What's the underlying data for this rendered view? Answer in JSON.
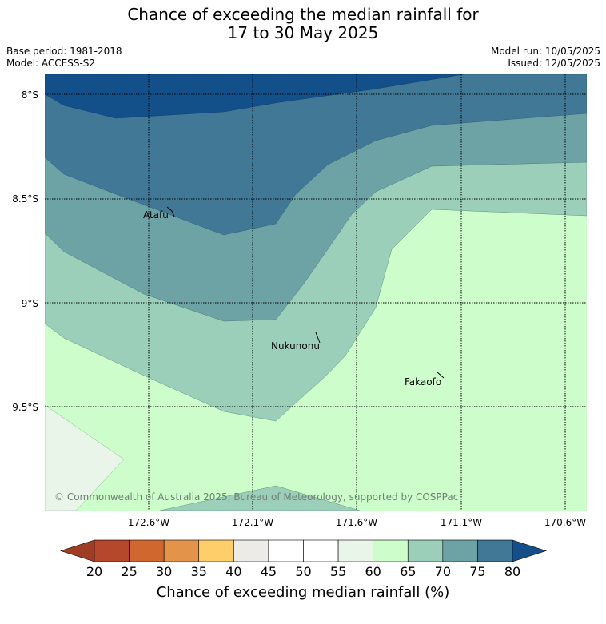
{
  "title_line1": "Chance of exceeding the median rainfall for",
  "title_line2": "17 to 30 May 2025",
  "base_period": "Base period: 1981-2018",
  "model": "Model: ACCESS-S2",
  "model_run": "Model run: 10/05/2025",
  "issued": "Issued: 12/05/2025",
  "lat_labels": [
    "8°S",
    "8.5°S",
    "9°S",
    "9.5°S"
  ],
  "lon_labels": [
    "172.6°W",
    "172.1°W",
    "171.6°W",
    "171.1°W",
    "170.6°W"
  ],
  "places": [
    "Atafu",
    "Nukunonu",
    "Fakaofo"
  ],
  "copyright": "© Commonwealth of Australia 2025, Bureau of Meteorology, supported by COSPPac",
  "colorbar": {
    "title": "Chance of exceeding median rainfall (%)",
    "ticks": [
      "20",
      "25",
      "30",
      "35",
      "40",
      "45",
      "50",
      "55",
      "60",
      "65",
      "70",
      "75",
      "80"
    ],
    "colors": [
      "#b5482a",
      "#d0672f",
      "#e3944a",
      "#fece6b",
      "#edebe7",
      "#ffffff",
      "#ffffff",
      "#eaf5e9",
      "#ccfdca",
      "#9ccfb9",
      "#6ea3a6",
      "#407895"
    ],
    "under_color": "#9e3d24",
    "over_color": "#134f89"
  }
}
